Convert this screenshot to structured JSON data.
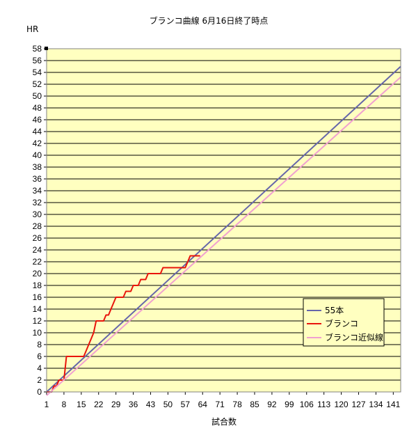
{
  "chart_data": {
    "type": "line",
    "title": "ブランコ曲線 6月16日終了時点",
    "ylabel": "HR",
    "xlabel": "試合数",
    "ylim": [
      0,
      58
    ],
    "xlim": [
      1,
      144
    ],
    "y_ticks": [
      0,
      2,
      4,
      6,
      8,
      10,
      12,
      14,
      16,
      18,
      20,
      22,
      24,
      26,
      28,
      30,
      32,
      34,
      36,
      38,
      40,
      42,
      44,
      46,
      48,
      50,
      52,
      54,
      56,
      58
    ],
    "x_ticks": [
      1,
      8,
      15,
      22,
      29,
      36,
      43,
      50,
      57,
      64,
      71,
      78,
      85,
      92,
      99,
      106,
      113,
      120,
      127,
      134,
      141
    ],
    "grid": true,
    "legend_position": "bottom-right",
    "colors": {
      "plot_bg": "#FFFFC0",
      "grid": "#000000"
    },
    "series": [
      {
        "name": "55本",
        "color": "#6666AA",
        "x": [
          1,
          144
        ],
        "y": [
          0,
          55
        ]
      },
      {
        "name": "ブランコ",
        "color": "#E8140C",
        "x": [
          1,
          2,
          3,
          4,
          5,
          6,
          7,
          8,
          9,
          10,
          11,
          12,
          13,
          14,
          15,
          16,
          17,
          18,
          19,
          20,
          21,
          22,
          23,
          24,
          25,
          26,
          27,
          28,
          29,
          30,
          31,
          32,
          33,
          34,
          35,
          36,
          37,
          38,
          39,
          40,
          41,
          42,
          43,
          44,
          45,
          46,
          47,
          48,
          49,
          50,
          51,
          52,
          53,
          54,
          55,
          56,
          57,
          58,
          59,
          60,
          61,
          62,
          63
        ],
        "y": [
          0,
          0,
          0,
          1,
          1,
          2,
          2,
          2,
          6,
          6,
          6,
          6,
          6,
          6,
          6,
          6,
          7,
          8,
          9,
          10,
          12,
          12,
          12,
          12,
          13,
          13,
          14,
          15,
          16,
          16,
          16,
          16,
          17,
          17,
          17,
          18,
          18,
          18,
          19,
          19,
          19,
          20,
          20,
          20,
          20,
          20,
          20,
          21,
          21,
          21,
          21,
          21,
          21,
          21,
          21,
          21,
          21,
          22,
          23,
          23,
          23,
          23,
          23
        ]
      },
      {
        "name": "ブランコ近似線",
        "color": "#F0A0D0",
        "x": [
          1,
          144
        ],
        "y": [
          -0.6,
          53.2
        ]
      }
    ]
  }
}
